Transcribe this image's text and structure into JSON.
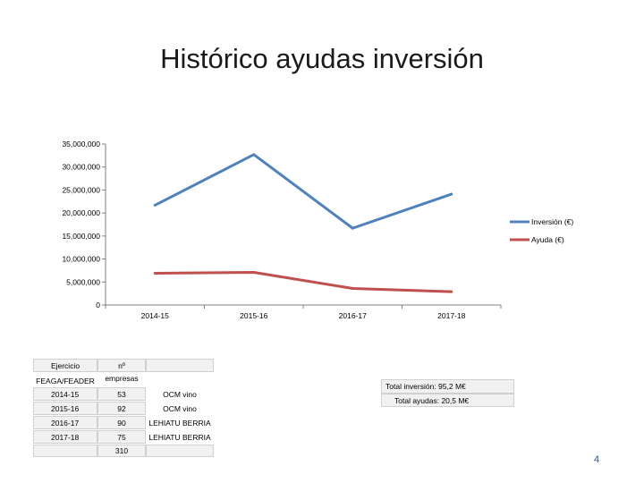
{
  "slide": {
    "title": "Histórico ayudas inversión",
    "page_number": "4"
  },
  "colors": {
    "inversion": "#4f81bd",
    "ayuda": "#c0504d",
    "axis": "#808080"
  },
  "chart_data": {
    "type": "line",
    "title": "",
    "xlabel": "",
    "ylabel": "",
    "categories": [
      "2014-15",
      "2015-16",
      "2016-17",
      "2017-18"
    ],
    "ylim": [
      0,
      35000000
    ],
    "yticks": [
      0,
      5000000,
      10000000,
      15000000,
      20000000,
      25000000,
      30000000,
      35000000
    ],
    "ytick_labels": [
      "0",
      "5,000,000",
      "10,000,000",
      "15,000,000",
      "20,000,000",
      "25,000,000",
      "30,000,000",
      "35,000,000"
    ],
    "series": [
      {
        "name": "Inversión (€)",
        "color": "#4f81bd",
        "values": [
          21700000,
          32700000,
          16700000,
          24100000
        ]
      },
      {
        "name": "Ayuda (€)",
        "color": "#c0504d",
        "values": [
          6900000,
          7100000,
          3600000,
          2900000
        ]
      }
    ],
    "legend": "right",
    "grid": false
  },
  "table": {
    "header_ejercicio": [
      "Ejercicio",
      "FEAGA/FEADER"
    ],
    "header_empresas": [
      "nº",
      "empresas"
    ],
    "rows": [
      {
        "ejercicio": "2014-15",
        "empresas": "53",
        "programa": "OCM vino"
      },
      {
        "ejercicio": "2015-16",
        "empresas": "92",
        "programa": "OCM vino"
      },
      {
        "ejercicio": "2016-17",
        "empresas": "90",
        "programa": "LEHIATU BERRIA"
      },
      {
        "ejercicio": "2017-18",
        "empresas": "75",
        "programa": "LEHIATU BERRIA"
      }
    ],
    "total_empresas": "310"
  },
  "totals": {
    "inversion": "Total inversión: 95,2 M€",
    "ayudas": "Total ayudas: 20,5 M€"
  }
}
